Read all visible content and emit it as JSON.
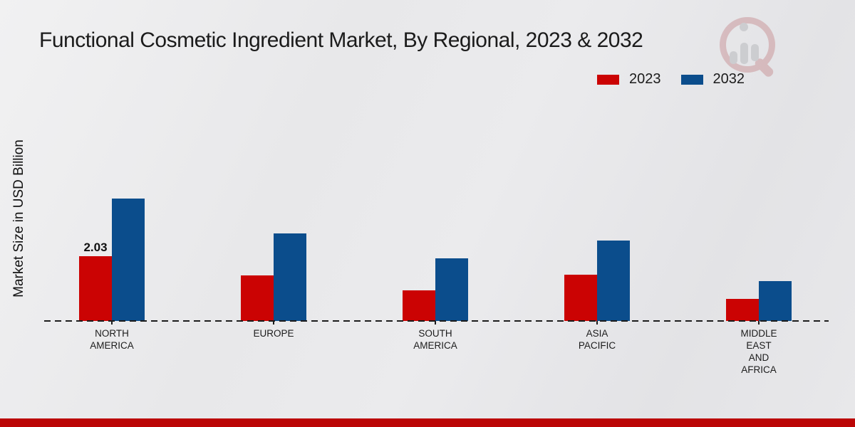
{
  "title": "Functional Cosmetic Ingredient Market, By Regional, 2023 & 2032",
  "y_axis_label": "Market Size in USD Billion",
  "legend": [
    {
      "label": "2023",
      "color": "#cb0303"
    },
    {
      "label": "2032",
      "color": "#0b4d8c"
    }
  ],
  "watermark": "market-research-magnifier-logo",
  "footer": {
    "band_color": "#bb0505"
  },
  "chart_data": {
    "type": "bar",
    "categories": [
      "NORTH AMERICA",
      "EUROPE",
      "SOUTH AMERICA",
      "ASIA PACIFIC",
      "MIDDLE EAST AND AFRICA"
    ],
    "display_labels": [
      "NORTH\nAMERICA",
      "EUROPE",
      "SOUTH\nAMERICA",
      "ASIA\nPACIFIC",
      "MIDDLE\nEAST\nAND\nAFRICA"
    ],
    "series": [
      {
        "name": "2023",
        "color": "#cb0303",
        "values": [
          2.03,
          1.43,
          0.96,
          1.45,
          0.69
        ]
      },
      {
        "name": "2032",
        "color": "#0b4d8c",
        "values": [
          3.84,
          2.74,
          1.96,
          2.52,
          1.25
        ]
      }
    ],
    "value_labels": [
      {
        "series": "2023",
        "category": "NORTH AMERICA",
        "text": "2.03"
      }
    ],
    "xlabel": "",
    "ylabel": "Market Size in USD Billion",
    "ylim": [
      0,
      4.5
    ],
    "grid": false,
    "legend_position": "top-right",
    "baseline_style": "dashed"
  }
}
